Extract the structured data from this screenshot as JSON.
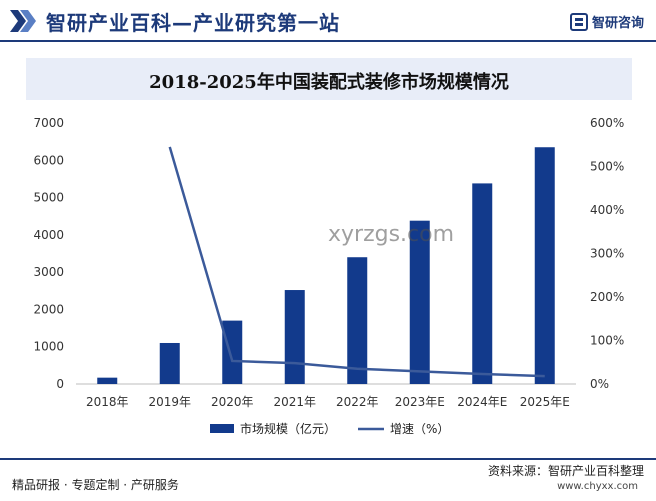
{
  "header": {
    "title": "智研产业百科—产业研究第一站",
    "brand": "智研咨询"
  },
  "watermark": "xyrzgs.com",
  "chart_data": {
    "type": "bar",
    "title": "2018-2025年中国装配式装修市场规模情况",
    "categories": [
      "2018年",
      "2019年",
      "2020年",
      "2021年",
      "2022年",
      "2023年E",
      "2024年E",
      "2025年E"
    ],
    "series": [
      {
        "name": "市场规模（亿元）",
        "type": "bar",
        "axis": "left",
        "color": "#123a8c",
        "values": [
          170,
          1100,
          1700,
          2520,
          3400,
          4380,
          5380,
          6350
        ]
      },
      {
        "name": "增速（%）",
        "type": "line",
        "axis": "right",
        "color": "#3b5a9a",
        "values": [
          null,
          545,
          53,
          48,
          35,
          29,
          23,
          18
        ]
      }
    ],
    "y_left": {
      "min": 0,
      "max": 7000,
      "ticks": [
        "0",
        "1000",
        "2000",
        "3000",
        "4000",
        "5000",
        "6000",
        "7000"
      ]
    },
    "y_right": {
      "min": 0,
      "max": 600,
      "ticks": [
        "0%",
        "100%",
        "200%",
        "300%",
        "400%",
        "500%",
        "600%"
      ]
    },
    "grid": false,
    "legend": "bottom"
  },
  "footer": {
    "left": "精品研报 · 专题定制 · 产研服务",
    "right": "资料来源：智研产业百科整理",
    "url": "www.chyxx.com"
  }
}
